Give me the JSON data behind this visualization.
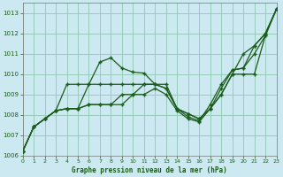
{
  "xlabel": "Graphe pression niveau de la mer (hPa)",
  "background_color": "#cce8f0",
  "grid_color": "#99ccbb",
  "line_color": "#1a5c1a",
  "ylim": [
    1006,
    1013.5
  ],
  "xlim": [
    0,
    23
  ],
  "yticks": [
    1006,
    1007,
    1008,
    1009,
    1010,
    1011,
    1012,
    1013
  ],
  "xticks": [
    0,
    1,
    2,
    3,
    4,
    5,
    6,
    7,
    8,
    9,
    10,
    11,
    12,
    13,
    14,
    15,
    16,
    17,
    18,
    19,
    20,
    21,
    22,
    23
  ],
  "series": [
    [
      1006.2,
      1007.4,
      1007.8,
      1008.2,
      1009.5,
      1009.5,
      1009.5,
      1010.6,
      1010.8,
      1010.3,
      1010.1,
      1010.05,
      1009.5,
      1009.3,
      1008.3,
      1008.05,
      1007.8,
      1008.3,
      1009.0,
      1010.0,
      1011.0,
      1011.4,
      1012.0,
      1013.2
    ],
    [
      1006.2,
      1007.4,
      1007.8,
      1008.2,
      1008.3,
      1008.3,
      1009.5,
      1009.5,
      1009.5,
      1009.5,
      1009.5,
      1009.5,
      1009.5,
      1009.3,
      1008.3,
      1007.9,
      1007.7,
      1008.5,
      1009.5,
      1010.2,
      1010.3,
      1011.4,
      1012.0,
      1013.2
    ],
    [
      1006.2,
      1007.4,
      1007.8,
      1008.2,
      1008.3,
      1008.3,
      1008.5,
      1008.5,
      1008.5,
      1009.0,
      1009.0,
      1009.5,
      1009.5,
      1009.5,
      1008.3,
      1008.05,
      1007.8,
      1008.3,
      1009.3,
      1010.2,
      1010.3,
      1011.0,
      1011.9,
      1013.2
    ],
    [
      1006.2,
      1007.4,
      1007.8,
      1008.2,
      1008.3,
      1008.3,
      1008.5,
      1008.5,
      1008.5,
      1008.5,
      1009.0,
      1009.0,
      1009.3,
      1009.0,
      1008.2,
      1007.8,
      1007.65,
      1008.3,
      1009.0,
      1010.0,
      1010.0,
      1010.0,
      1011.9,
      1013.2
    ]
  ]
}
